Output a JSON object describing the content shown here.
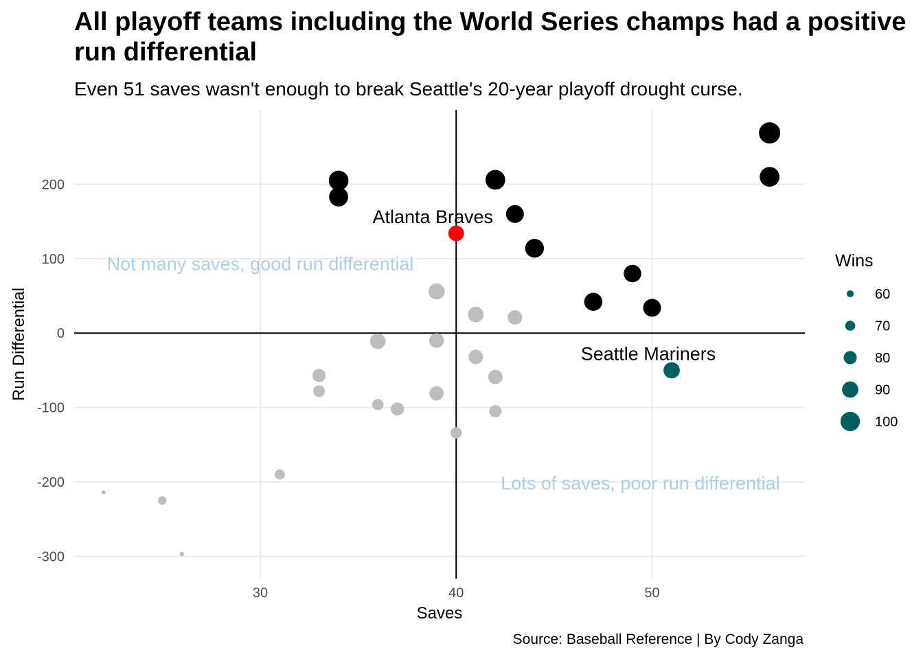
{
  "title": "All playoff teams including the World Series champs had a positive run differential",
  "subtitle": "Even 51 saves wasn't enough to break Seattle's 20-year playoff drought curse.",
  "caption": "Source: Baseball Reference | By Cody Zanga",
  "colors": {
    "playoff": "#000000",
    "non_playoff": "#bebebe",
    "champion": "#ff0000",
    "highlight": "#006060",
    "quadrant_text": "#aecde6"
  },
  "chart_data": {
    "type": "scatter",
    "xlabel": "Saves",
    "ylabel": "Run Differential",
    "xlim": [
      20.5,
      57.8
    ],
    "ylim": [
      -330,
      300
    ],
    "xticks": [
      30,
      40,
      50
    ],
    "yticks": [
      -300,
      -200,
      -100,
      0,
      100,
      200
    ],
    "reference_lines": {
      "x": 40,
      "y": 0
    },
    "grid": true,
    "legend": {
      "title": "Wins",
      "position": "right",
      "values": [
        60,
        70,
        80,
        90,
        100
      ]
    },
    "annotations": [
      {
        "text": "Not many saves, good run differential",
        "x": 30,
        "y": 93
      },
      {
        "text": "Lots of saves, poor run differential",
        "x": 49.4,
        "y": -202
      }
    ],
    "points": [
      {
        "saves": 56,
        "run_diff": 269,
        "wins": 106,
        "group": "playoff"
      },
      {
        "saves": 56,
        "run_diff": 210,
        "wins": 101,
        "group": "playoff"
      },
      {
        "saves": 34,
        "run_diff": 205,
        "wins": 101,
        "group": "playoff"
      },
      {
        "saves": 34,
        "run_diff": 183,
        "wins": 99,
        "group": "playoff"
      },
      {
        "saves": 42,
        "run_diff": 206,
        "wins": 101,
        "group": "playoff"
      },
      {
        "saves": 43,
        "run_diff": 160,
        "wins": 95,
        "group": "playoff"
      },
      {
        "saves": 44,
        "run_diff": 114,
        "wins": 98,
        "group": "playoff"
      },
      {
        "saves": 49,
        "run_diff": 80,
        "wins": 94,
        "group": "playoff"
      },
      {
        "saves": 47,
        "run_diff": 42,
        "wins": 96,
        "group": "playoff"
      },
      {
        "saves": 50,
        "run_diff": 34,
        "wins": 95,
        "group": "playoff"
      },
      {
        "saves": 40,
        "run_diff": 134,
        "wins": 88,
        "group": "champion",
        "label": "Atlanta Braves"
      },
      {
        "saves": 51,
        "run_diff": -50,
        "wins": 90,
        "group": "highlight",
        "label": "Seattle Mariners"
      },
      {
        "saves": 39,
        "run_diff": 56,
        "wins": 90,
        "group": "non_playoff"
      },
      {
        "saves": 41,
        "run_diff": 25,
        "wins": 88,
        "group": "non_playoff"
      },
      {
        "saves": 43,
        "run_diff": 21,
        "wins": 84,
        "group": "non_playoff"
      },
      {
        "saves": 36,
        "run_diff": -11,
        "wins": 88,
        "group": "non_playoff"
      },
      {
        "saves": 39,
        "run_diff": -10,
        "wins": 85,
        "group": "non_playoff"
      },
      {
        "saves": 41,
        "run_diff": -32,
        "wins": 84,
        "group": "non_playoff"
      },
      {
        "saves": 42,
        "run_diff": -59,
        "wins": 84,
        "group": "non_playoff"
      },
      {
        "saves": 33,
        "run_diff": -57,
        "wins": 80,
        "group": "non_playoff"
      },
      {
        "saves": 33,
        "run_diff": -78,
        "wins": 75,
        "group": "non_playoff"
      },
      {
        "saves": 39,
        "run_diff": -81,
        "wins": 84,
        "group": "non_playoff"
      },
      {
        "saves": 36,
        "run_diff": -96,
        "wins": 74,
        "group": "non_playoff"
      },
      {
        "saves": 37,
        "run_diff": -102,
        "wins": 80,
        "group": "non_playoff"
      },
      {
        "saves": 42,
        "run_diff": -105,
        "wins": 77,
        "group": "non_playoff"
      },
      {
        "saves": 40,
        "run_diff": -134,
        "wins": 74,
        "group": "non_playoff"
      },
      {
        "saves": 31,
        "run_diff": -190,
        "wins": 70,
        "group": "non_playoff"
      },
      {
        "saves": 25,
        "run_diff": -225,
        "wins": 65,
        "group": "non_playoff"
      },
      {
        "saves": 22,
        "run_diff": -214,
        "wins": 51,
        "group": "non_playoff"
      },
      {
        "saves": 26,
        "run_diff": -297,
        "wins": 52,
        "group": "non_playoff"
      }
    ]
  }
}
